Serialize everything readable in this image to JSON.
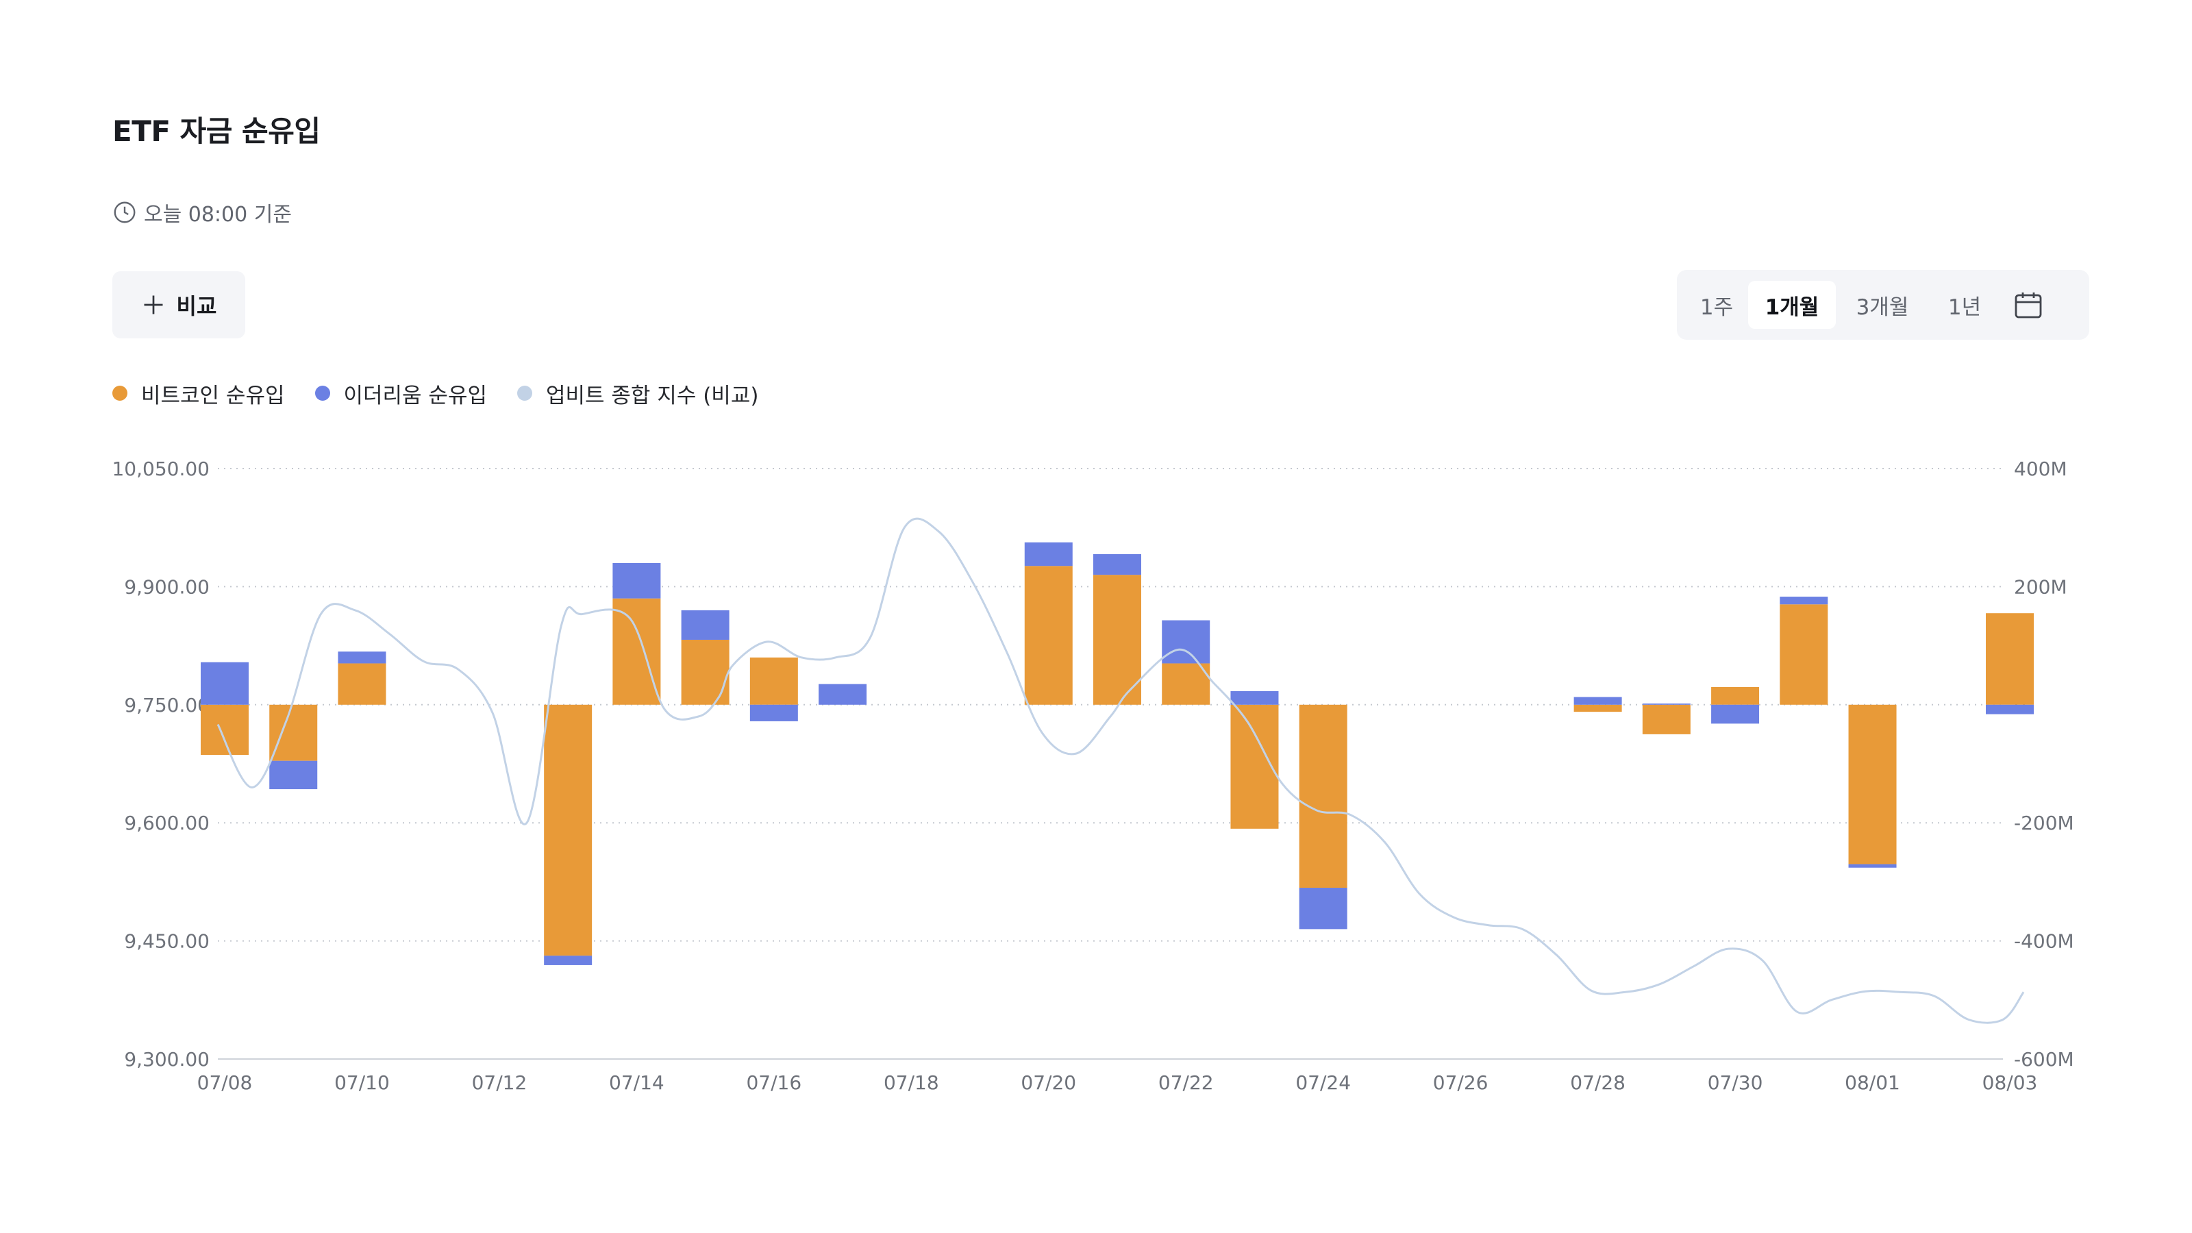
{
  "header": {
    "title": "ETF 자금 순유입",
    "updated": "오늘 08:00 기준"
  },
  "controls": {
    "compare_label": "비교",
    "periods": [
      {
        "label": "1주",
        "active": false
      },
      {
        "label": "1개월",
        "active": true
      },
      {
        "label": "3개월",
        "active": false
      },
      {
        "label": "1년",
        "active": false
      }
    ]
  },
  "legend": [
    {
      "label": "비트코인 순유입",
      "color": "#e89a38"
    },
    {
      "label": "이더리움 순유입",
      "color": "#6b80e3"
    },
    {
      "label": "업비트 종합 지수 (비교)",
      "color": "#c2d2e6"
    }
  ],
  "chart_data": {
    "type": "bar",
    "stacked": true,
    "categories": [
      "07/08",
      "07/09",
      "07/10",
      "07/11",
      "07/12",
      "07/13",
      "07/14",
      "07/15",
      "07/16",
      "07/17",
      "07/18",
      "07/19",
      "07/20",
      "07/21",
      "07/22",
      "07/23",
      "07/24",
      "07/25",
      "07/26",
      "07/27",
      "07/28",
      "07/29",
      "07/30",
      "07/31",
      "08/01",
      "08/02",
      "08/03"
    ],
    "series": [
      {
        "name": "비트코인 순유입",
        "axis": "right",
        "type": "bar",
        "values": [
          -85,
          -95,
          70,
          0,
          0,
          -425,
          180,
          110,
          80,
          0,
          0,
          0,
          235,
          220,
          70,
          -210,
          -310,
          0,
          0,
          0,
          -12,
          -50,
          30,
          170,
          -270,
          0,
          155
        ]
      },
      {
        "name": "이더리움 순유입",
        "axis": "right",
        "type": "bar",
        "values": [
          72,
          -48,
          20,
          0,
          0,
          -16,
          60,
          50,
          -28,
          35,
          0,
          0,
          40,
          35,
          73,
          23,
          -70,
          0,
          0,
          0,
          13,
          2,
          -32,
          13,
          -6,
          0,
          -16
        ]
      },
      {
        "name": "업비트 종합 지수 (비교)",
        "axis": "left",
        "type": "line",
        "x": [
          0,
          0.5,
          1,
          1.5,
          2,
          2.5,
          3,
          3.5,
          4,
          4.5,
          5,
          5.3,
          6,
          6.5,
          7,
          7.3,
          7.5,
          8,
          8.5,
          9,
          9.5,
          10,
          10.5,
          11,
          11.5,
          12,
          12.5,
          13,
          13.3,
          14,
          14.5,
          15,
          15.5,
          16,
          16.5,
          17,
          17.5,
          18,
          18.5,
          19,
          19.5,
          20,
          20.5,
          21,
          21.5,
          22,
          22.5,
          23,
          23.5,
          24,
          24.5,
          25,
          25.5,
          26,
          26.3
        ],
        "values": [
          9725,
          9645,
          9730,
          9865,
          9870,
          9840,
          9805,
          9795,
          9740,
          9600,
          9850,
          9865,
          9860,
          9745,
          9735,
          9760,
          9800,
          9830,
          9810,
          9810,
          9835,
          9975,
          9970,
          9905,
          9815,
          9715,
          9688,
          9735,
          9770,
          9820,
          9778,
          9728,
          9650,
          9616,
          9610,
          9575,
          9510,
          9480,
          9470,
          9465,
          9432,
          9387,
          9385,
          9395,
          9418,
          9440,
          9425,
          9360,
          9375,
          9386,
          9385,
          9380,
          9350,
          9350,
          9385
        ]
      }
    ],
    "y_left": {
      "min": 9300,
      "max": 10050,
      "ticks": [
        "9,300.00",
        "9,450.00",
        "9,600.00",
        "9,750.00",
        "9,900.00",
        "10,050.00"
      ]
    },
    "y_right": {
      "min": -600,
      "max": 400,
      "ticks": [
        "-600M",
        "-400M",
        "-200M",
        "0",
        "200M",
        "400M"
      ]
    },
    "x_ticks": [
      "07/08",
      "07/10",
      "07/12",
      "07/14",
      "07/16",
      "07/18",
      "07/20",
      "07/22",
      "07/24",
      "07/26",
      "07/28",
      "07/30",
      "08/01",
      "08/03"
    ],
    "grid": "horizontal-dotted",
    "legend_position": "top-left"
  }
}
